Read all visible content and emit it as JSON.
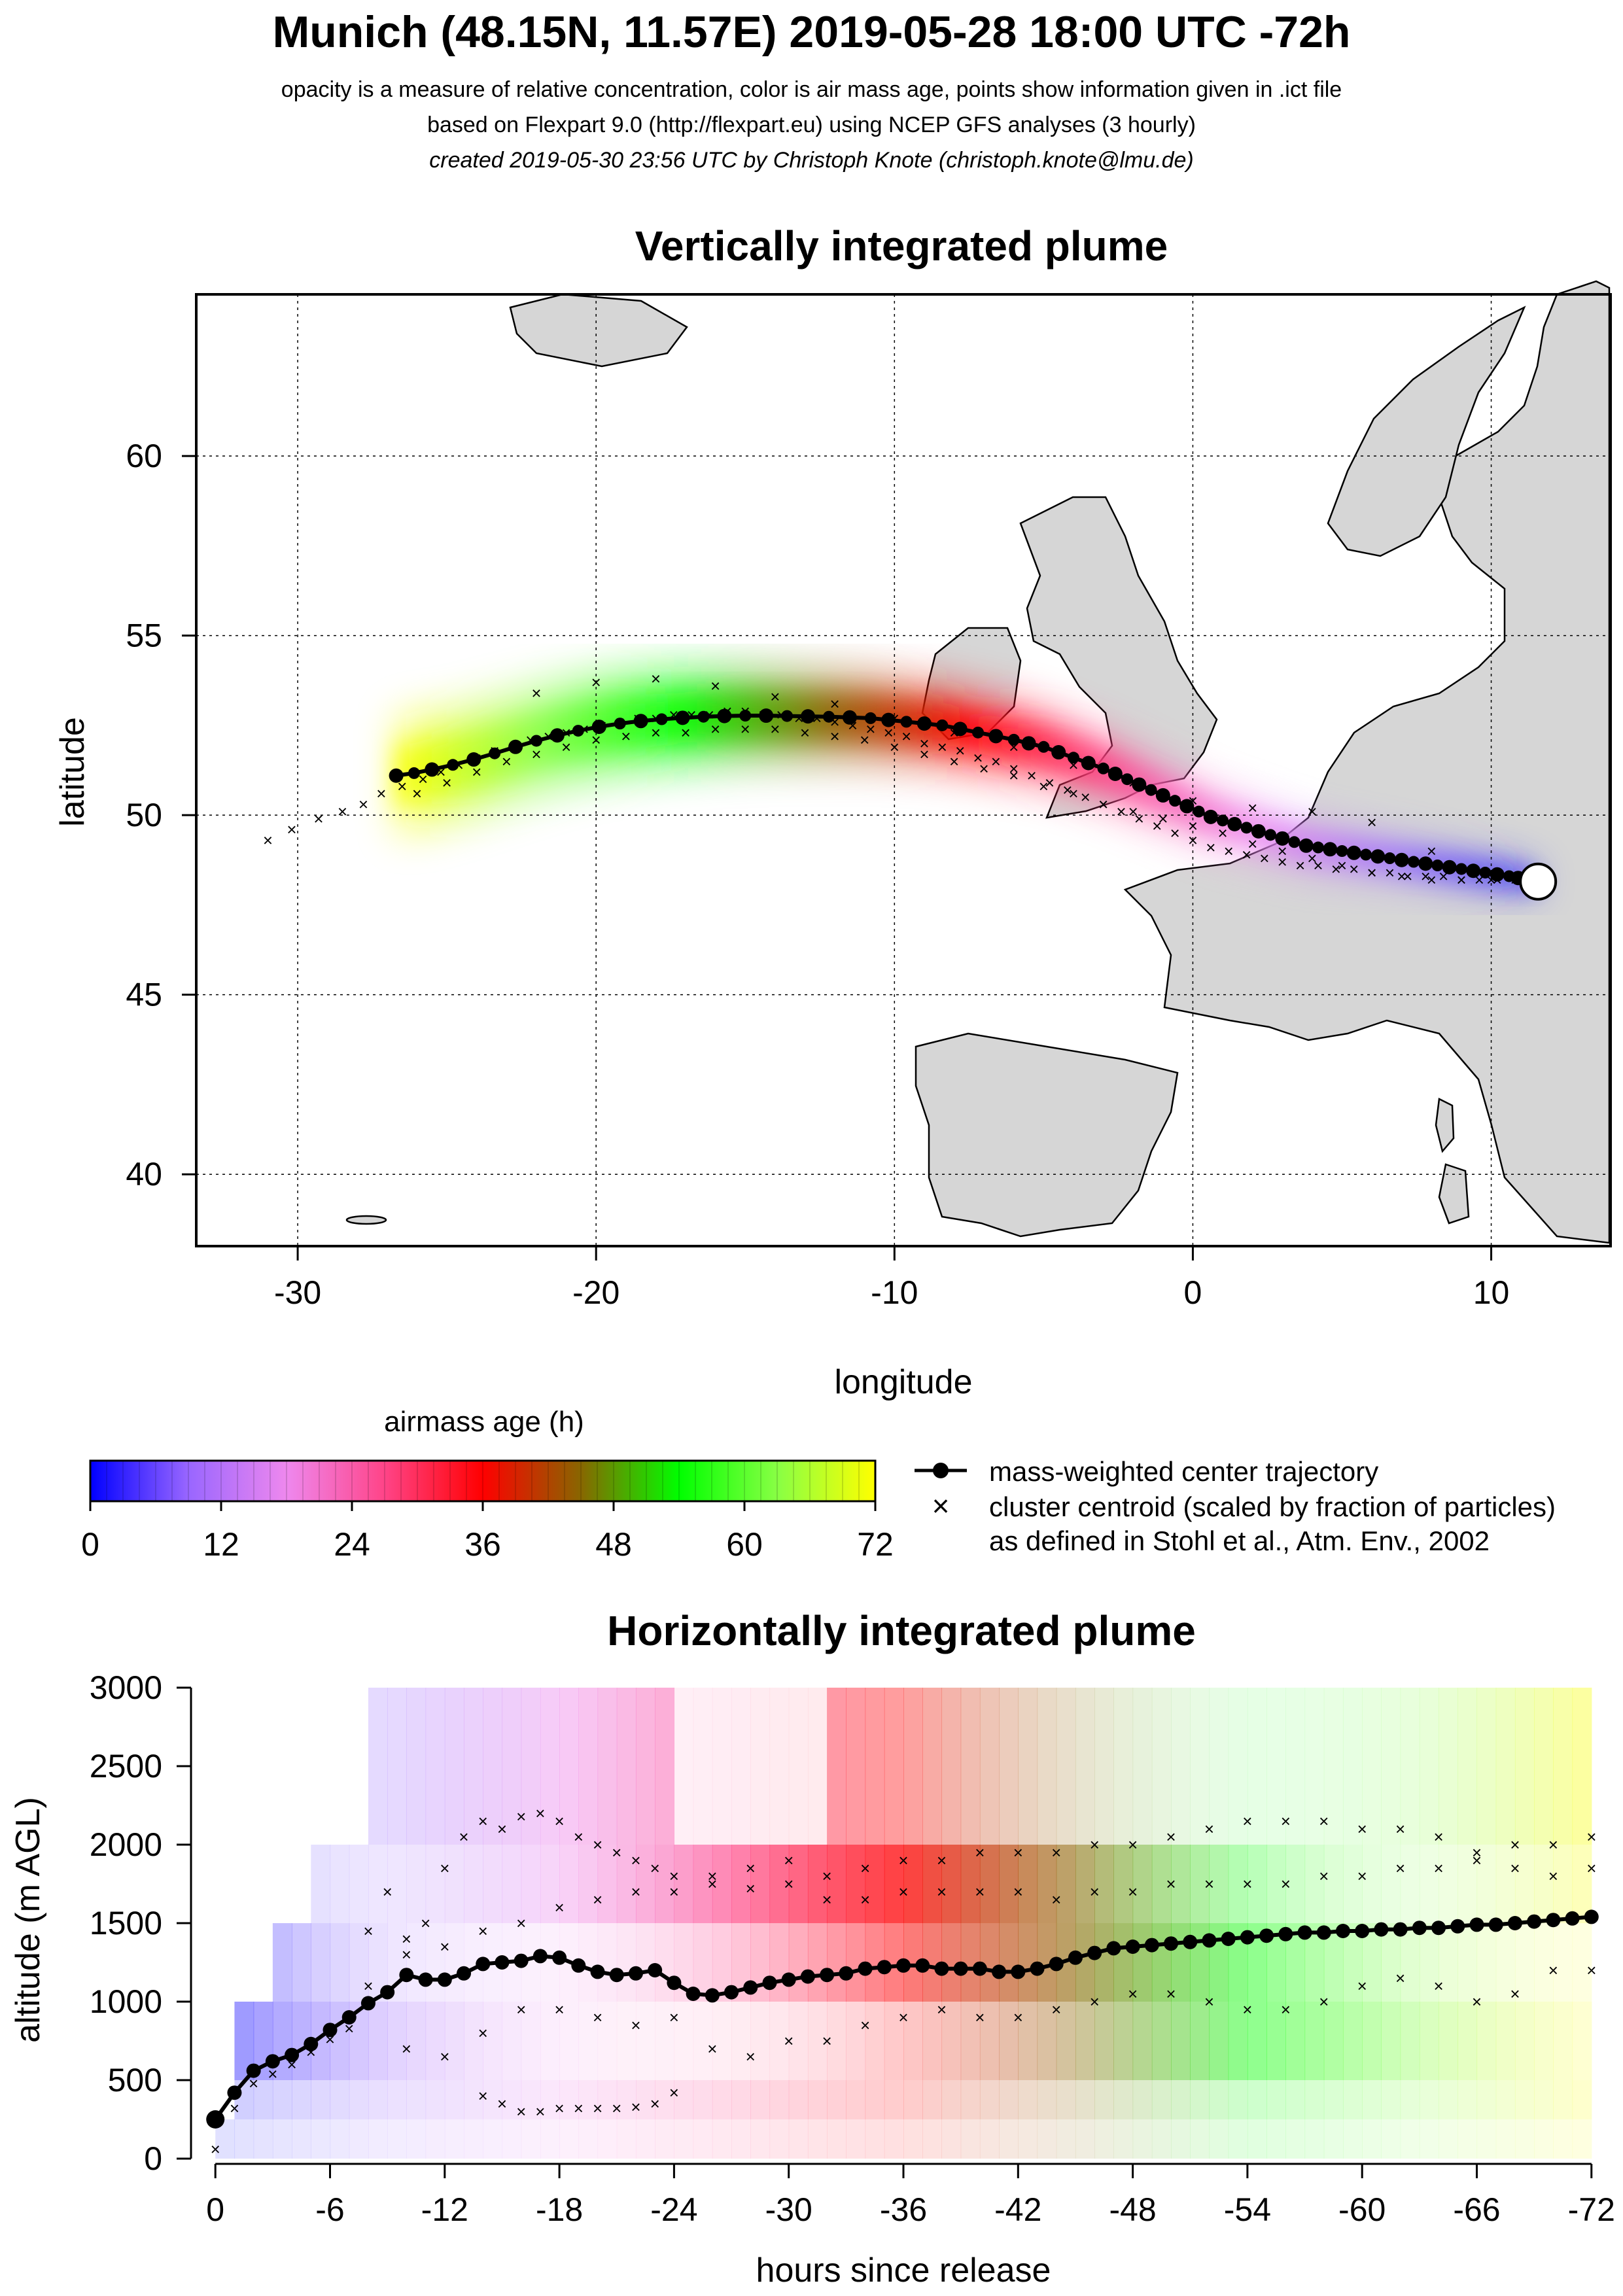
{
  "header": {
    "title": "Munich (48.15N, 11.57E) 2019-05-28 18:00 UTC -72h",
    "line1": "opacity is a measure of relative concentration, color is air mass age, points show information given in .ict file",
    "line2": "based on Flexpart 9.0 (http://flexpart.eu) using NCEP GFS analyses (3 hourly)",
    "line3": "created 2019-05-30 23:56 UTC by Christoph Knote (christoph.knote@lmu.de)"
  },
  "legend": {
    "colorbar_title": "airmass age (h)",
    "colorbar_ticks": [
      "0",
      "12",
      "24",
      "36",
      "48",
      "60",
      "72"
    ],
    "colorbar_range": [
      0,
      72
    ],
    "colorbar_colors": [
      "#0000ff",
      "#9966ff",
      "#ee88ee",
      "#ff4488",
      "#ff0000",
      "#886600",
      "#00ff00",
      "#88ff44",
      "#ffff00"
    ],
    "trajectory_label": "mass-weighted center trajectory",
    "cluster_label": "cluster centroid (scaled by fraction of particles)",
    "cluster_ref": "as defined in Stohl et al., Atm. Env., 2002"
  },
  "chart_data": [
    {
      "type": "scatter",
      "title": "Vertically integrated plume",
      "xlabel": "longitude",
      "ylabel": "latitude",
      "xlim": [
        -33.4,
        14
      ],
      "ylim": [
        38,
        64.5
      ],
      "xticks": [
        "-30",
        "-20",
        "-10",
        "0",
        "10"
      ],
      "yticks": [
        "40",
        "45",
        "50",
        "55",
        "60"
      ],
      "xtick_values": [
        -30,
        -20,
        -10,
        0,
        10
      ],
      "ytick_values": [
        40,
        45,
        50,
        55,
        60
      ],
      "grid": true,
      "release_point": {
        "lon": 11.57,
        "lat": 48.15
      },
      "series": [
        {
          "name": "mass-weighted center trajectory",
          "lon": [
            11.5,
            11.2,
            10.9,
            10.6,
            10.2,
            9.8,
            9.4,
            9.0,
            8.6,
            8.2,
            7.8,
            7.4,
            7.0,
            6.6,
            6.2,
            5.8,
            5.4,
            5.0,
            4.6,
            4.2,
            3.8,
            3.4,
            3.0,
            2.6,
            2.2,
            1.8,
            1.4,
            1.0,
            0.6,
            0.2,
            -0.2,
            -0.6,
            -1.0,
            -1.4,
            -1.8,
            -2.2,
            -2.6,
            -3.0,
            -3.5,
            -4.0,
            -4.5,
            -5.0,
            -5.5,
            -6.0,
            -6.6,
            -7.2,
            -7.8,
            -8.4,
            -9.0,
            -9.6,
            -10.2,
            -10.8,
            -11.5,
            -12.2,
            -12.9,
            -13.6,
            -14.3,
            -15.0,
            -15.7,
            -16.4,
            -17.1,
            -17.8,
            -18.5,
            -19.2,
            -19.9,
            -20.6,
            -21.3,
            -22.0,
            -22.7,
            -23.4,
            -24.1,
            -24.8,
            -25.5,
            -26.1,
            -26.7
          ],
          "lat": [
            48.15,
            48.2,
            48.25,
            48.3,
            48.35,
            48.4,
            48.45,
            48.5,
            48.55,
            48.6,
            48.65,
            48.7,
            48.75,
            48.8,
            48.85,
            48.9,
            48.95,
            49.0,
            49.05,
            49.1,
            49.15,
            49.25,
            49.35,
            49.45,
            49.55,
            49.65,
            49.75,
            49.85,
            49.95,
            50.1,
            50.25,
            50.4,
            50.55,
            50.7,
            50.85,
            51.0,
            51.15,
            51.3,
            51.45,
            51.6,
            51.75,
            51.9,
            52.0,
            52.1,
            52.2,
            52.3,
            52.4,
            52.5,
            52.55,
            52.6,
            52.65,
            52.7,
            52.72,
            52.74,
            52.75,
            52.76,
            52.77,
            52.77,
            52.76,
            52.74,
            52.71,
            52.67,
            52.62,
            52.55,
            52.46,
            52.35,
            52.22,
            52.07,
            51.9,
            51.72,
            51.55,
            51.4,
            51.27,
            51.17,
            51.1
          ]
        },
        {
          "name": "cluster centroid (scaled by fraction of particles)",
          "lon": [
            -31,
            -30.2,
            -29.3,
            -28.5,
            -27.8,
            -27.2,
            -26.5,
            -25.8,
            -25.2,
            -24.6,
            -24,
            -23.4,
            -22.8,
            -22.2,
            -21.6,
            -21,
            -20.4,
            -19.8,
            -19.2,
            -18.6,
            -18,
            -17.4,
            -16.8,
            -16.2,
            -15.6,
            -15,
            -14.4,
            -13.8,
            -13.2,
            -12.6,
            -12,
            -11.4,
            -10.8,
            -10.2,
            -9.6,
            -9,
            -8.4,
            -7.8,
            -7.2,
            -6.6,
            -6,
            -5.4,
            -4.8,
            -4.2,
            -3.6,
            -3,
            -2.4,
            -1.8,
            -1.2,
            -0.6,
            0,
            0.6,
            1.2,
            1.8,
            2.4,
            3,
            3.6,
            4.2,
            4.8,
            5.4,
            6,
            6.6,
            7.2,
            7.8,
            8.4,
            9,
            9.6,
            10.2,
            10.8,
            -26,
            -25,
            -24,
            -23,
            -22,
            -21,
            -20,
            -19,
            -18,
            -17,
            -16,
            -15,
            -14,
            -13,
            -12,
            -11,
            -10,
            -9,
            -8,
            -7,
            -6,
            -5,
            -4,
            -3,
            -2,
            -1,
            0,
            1,
            2,
            3,
            4,
            5,
            6,
            7,
            8,
            9,
            10,
            -22,
            -20,
            -18,
            -16,
            -14,
            -12,
            -10,
            -8,
            -6,
            -4,
            -2,
            0,
            2,
            4,
            6,
            8,
            10
          ],
          "lat": [
            49.3,
            49.6,
            49.9,
            50.1,
            50.3,
            50.6,
            50.8,
            51.0,
            51.2,
            51.4,
            51.6,
            51.8,
            51.9,
            52.1,
            52.2,
            52.3,
            52.4,
            52.5,
            52.6,
            52.7,
            52.7,
            52.8,
            52.8,
            52.8,
            52.9,
            52.9,
            52.8,
            52.8,
            52.7,
            52.7,
            52.6,
            52.5,
            52.4,
            52.3,
            52.2,
            52.0,
            51.9,
            51.8,
            51.6,
            51.5,
            51.3,
            51.1,
            50.9,
            50.7,
            50.5,
            50.3,
            50.1,
            49.9,
            49.7,
            49.5,
            49.3,
            49.1,
            49.0,
            48.9,
            48.8,
            48.7,
            48.6,
            48.6,
            48.5,
            48.5,
            48.4,
            48.4,
            48.3,
            48.3,
            48.3,
            48.2,
            48.2,
            48.2,
            48.2,
            50.6,
            50.9,
            51.2,
            51.5,
            51.7,
            51.9,
            52.1,
            52.2,
            52.3,
            52.3,
            52.4,
            52.4,
            52.4,
            52.3,
            52.2,
            52.1,
            51.9,
            51.7,
            51.5,
            51.3,
            51.1,
            50.8,
            50.6,
            50.3,
            50.1,
            49.9,
            49.7,
            49.5,
            49.2,
            49.0,
            48.8,
            48.6,
            48.4,
            48.3,
            48.2,
            48.2,
            48.2,
            53.4,
            53.7,
            53.8,
            53.6,
            53.3,
            53.1,
            52.7,
            52.3,
            51.9,
            51.4,
            50.9,
            50.4,
            50.2,
            50.1,
            49.8,
            49.0,
            48.4
          ]
        }
      ]
    },
    {
      "type": "scatter",
      "title": "Horizontally integrated plume",
      "xlabel": "hours since release",
      "ylabel": "altitude (m AGL)",
      "xlim": [
        1,
        -73
      ],
      "ylim": [
        0,
        3000
      ],
      "xticks": [
        "0",
        "-6",
        "-12",
        "-18",
        "-24",
        "-30",
        "-36",
        "-42",
        "-48",
        "-54",
        "-60",
        "-66",
        "-72"
      ],
      "yticks": [
        "0",
        "500",
        "1000",
        "1500",
        "2000",
        "2500",
        "3000"
      ],
      "xtick_values": [
        0,
        -6,
        -12,
        -18,
        -24,
        -30,
        -36,
        -42,
        -48,
        -54,
        -60,
        -66,
        -72
      ],
      "ytick_values": [
        0,
        500,
        1000,
        1500,
        2000,
        2500,
        3000
      ],
      "series": [
        {
          "name": "mass-weighted center trajectory",
          "x": [
            0,
            -1,
            -2,
            -3,
            -4,
            -5,
            -6,
            -7,
            -8,
            -9,
            -10,
            -11,
            -12,
            -13,
            -14,
            -15,
            -16,
            -17,
            -18,
            -19,
            -20,
            -21,
            -22,
            -23,
            -24,
            -25,
            -26,
            -27,
            -28,
            -29,
            -30,
            -31,
            -32,
            -33,
            -34,
            -35,
            -36,
            -37,
            -38,
            -39,
            -40,
            -41,
            -42,
            -43,
            -44,
            -45,
            -46,
            -47,
            -48,
            -49,
            -50,
            -51,
            -52,
            -53,
            -54,
            -55,
            -56,
            -57,
            -58,
            -59,
            -60,
            -61,
            -62,
            -63,
            -64,
            -65,
            -66,
            -67,
            -68,
            -69,
            -70,
            -71,
            -72
          ],
          "y": [
            250,
            420,
            560,
            620,
            660,
            730,
            820,
            900,
            990,
            1060,
            1170,
            1140,
            1140,
            1180,
            1240,
            1250,
            1260,
            1290,
            1280,
            1230,
            1190,
            1170,
            1180,
            1200,
            1120,
            1050,
            1040,
            1060,
            1090,
            1120,
            1140,
            1160,
            1170,
            1180,
            1210,
            1220,
            1230,
            1230,
            1210,
            1210,
            1210,
            1190,
            1190,
            1210,
            1240,
            1280,
            1310,
            1340,
            1350,
            1360,
            1370,
            1380,
            1390,
            1400,
            1410,
            1420,
            1430,
            1440,
            1440,
            1450,
            1450,
            1460,
            1460,
            1470,
            1470,
            1480,
            1490,
            1490,
            1500,
            1510,
            1520,
            1530,
            1540
          ]
        },
        {
          "name": "cluster centroid (scaled by fraction of particles)",
          "x": [
            0,
            -1,
            -2,
            -3,
            -4,
            -5,
            -6,
            -7,
            -8,
            -9,
            -10,
            -11,
            -12,
            -13,
            -14,
            -15,
            -16,
            -17,
            -18,
            -19,
            -20,
            -21,
            -22,
            -23,
            -24,
            -26,
            -28,
            -30,
            -32,
            -34,
            -36,
            -38,
            -40,
            -42,
            -44,
            -46,
            -48,
            -50,
            -52,
            -54,
            -56,
            -58,
            -60,
            -62,
            -64,
            -66,
            -68,
            -70,
            -72,
            -8,
            -10,
            -12,
            -14,
            -16,
            -18,
            -20,
            -22,
            -24,
            -26,
            -28,
            -30,
            -32,
            -34,
            -36,
            -38,
            -40,
            -42,
            -44,
            -46,
            -48,
            -50,
            -52,
            -54,
            -56,
            -58,
            -60,
            -62,
            -64,
            -66,
            -68,
            -70,
            -72,
            -10,
            -12,
            -14,
            -16,
            -18,
            -20,
            -22,
            -24,
            -26,
            -28,
            -30,
            -32,
            -34,
            -36,
            -38,
            -40,
            -42,
            -44,
            -46,
            -48,
            -50,
            -52,
            -54,
            -56,
            -58,
            -60,
            -62,
            -64,
            -66,
            -68,
            -70,
            -72,
            -14,
            -15,
            -16,
            -17,
            -18,
            -19,
            -20,
            -21,
            -22,
            -23,
            -24
          ],
          "y": [
            60,
            320,
            480,
            540,
            600,
            680,
            760,
            830,
            1450,
            1700,
            1400,
            1500,
            1850,
            2050,
            2150,
            2100,
            2180,
            2200,
            2150,
            2050,
            2000,
            1950,
            1900,
            1850,
            1800,
            1750,
            1720,
            1750,
            1800,
            1850,
            1900,
            1900,
            1950,
            1950,
            1950,
            2000,
            2000,
            2050,
            2100,
            2150,
            2150,
            2150,
            2100,
            2100,
            2050,
            1950,
            2000,
            2000,
            2050,
            1100,
            1300,
            1350,
            1450,
            1500,
            1600,
            1650,
            1700,
            1700,
            1800,
            1850,
            1900,
            1650,
            1650,
            1700,
            1700,
            1700,
            1700,
            1650,
            1700,
            1700,
            1750,
            1750,
            1750,
            1750,
            1800,
            1800,
            1850,
            1850,
            1900,
            1850,
            1800,
            1850,
            700,
            650,
            800,
            950,
            950,
            900,
            850,
            900,
            700,
            650,
            750,
            750,
            850,
            900,
            950,
            900,
            900,
            950,
            1000,
            1050,
            1050,
            1000,
            950,
            950,
            1000,
            1100,
            1150,
            1100,
            1000,
            1050,
            1200,
            1200,
            400,
            350,
            300,
            300,
            320,
            320,
            320,
            320,
            330,
            350,
            420
          ]
        }
      ]
    }
  ]
}
